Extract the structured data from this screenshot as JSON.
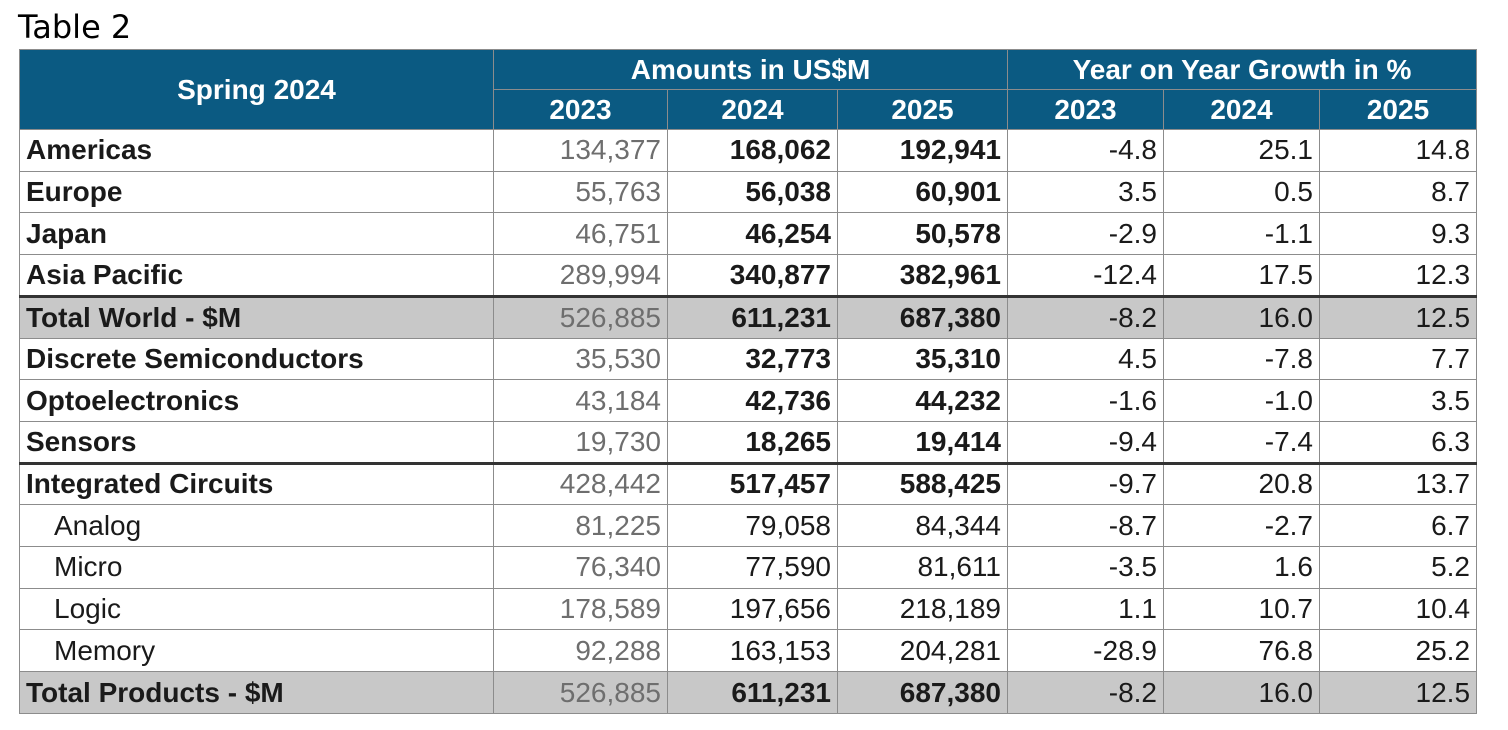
{
  "caption": "Table 2",
  "header": {
    "corner": "Spring 2024",
    "group_amounts": "Amounts in US$M",
    "group_growth": "Year on Year Growth in %",
    "years": [
      "2023",
      "2024",
      "2025",
      "2023",
      "2024",
      "2025"
    ]
  },
  "rows": [
    {
      "label": "Americas",
      "sub": false,
      "total": false,
      "values": [
        "134,377",
        "168,062",
        "192,941",
        "-4.8",
        "25.1",
        "14.8"
      ]
    },
    {
      "label": "Europe",
      "sub": false,
      "total": false,
      "values": [
        "55,763",
        "56,038",
        "60,901",
        "3.5",
        "0.5",
        "8.7"
      ]
    },
    {
      "label": "Japan",
      "sub": false,
      "total": false,
      "values": [
        "46,751",
        "46,254",
        "50,578",
        "-2.9",
        "-1.1",
        "9.3"
      ]
    },
    {
      "label": "Asia Pacific",
      "sub": false,
      "total": false,
      "values": [
        "289,994",
        "340,877",
        "382,961",
        "-12.4",
        "17.5",
        "12.3"
      ]
    },
    {
      "label": "Total World - $M",
      "sub": false,
      "total": true,
      "values": [
        "526,885",
        "611,231",
        "687,380",
        "-8.2",
        "16.0",
        "12.5"
      ]
    },
    {
      "label": "Discrete Semiconductors",
      "sub": false,
      "total": false,
      "values": [
        "35,530",
        "32,773",
        "35,310",
        "4.5",
        "-7.8",
        "7.7"
      ]
    },
    {
      "label": "Optoelectronics",
      "sub": false,
      "total": false,
      "values": [
        "43,184",
        "42,736",
        "44,232",
        "-1.6",
        "-1.0",
        "3.5"
      ]
    },
    {
      "label": "Sensors",
      "sub": false,
      "total": false,
      "values": [
        "19,730",
        "18,265",
        "19,414",
        "-9.4",
        "-7.4",
        "6.3"
      ]
    },
    {
      "label": "Integrated Circuits",
      "sub": false,
      "total": false,
      "values": [
        "428,442",
        "517,457",
        "588,425",
        "-9.7",
        "20.8",
        "13.7"
      ]
    },
    {
      "label": "Analog",
      "sub": true,
      "total": false,
      "values": [
        "81,225",
        "79,058",
        "84,344",
        "-8.7",
        "-2.7",
        "6.7"
      ]
    },
    {
      "label": "Micro",
      "sub": true,
      "total": false,
      "values": [
        "76,340",
        "77,590",
        "81,611",
        "-3.5",
        "1.6",
        "5.2"
      ]
    },
    {
      "label": "Logic",
      "sub": true,
      "total": false,
      "values": [
        "178,589",
        "197,656",
        "218,189",
        "1.1",
        "10.7",
        "10.4"
      ]
    },
    {
      "label": "Memory",
      "sub": true,
      "total": false,
      "values": [
        "92,288",
        "163,153",
        "204,281",
        "-28.9",
        "76.8",
        "25.2"
      ]
    },
    {
      "label": "Total Products - $M",
      "sub": false,
      "total": true,
      "values": [
        "526,885",
        "611,231",
        "687,380",
        "-8.2",
        "16.0",
        "12.5"
      ]
    }
  ]
}
